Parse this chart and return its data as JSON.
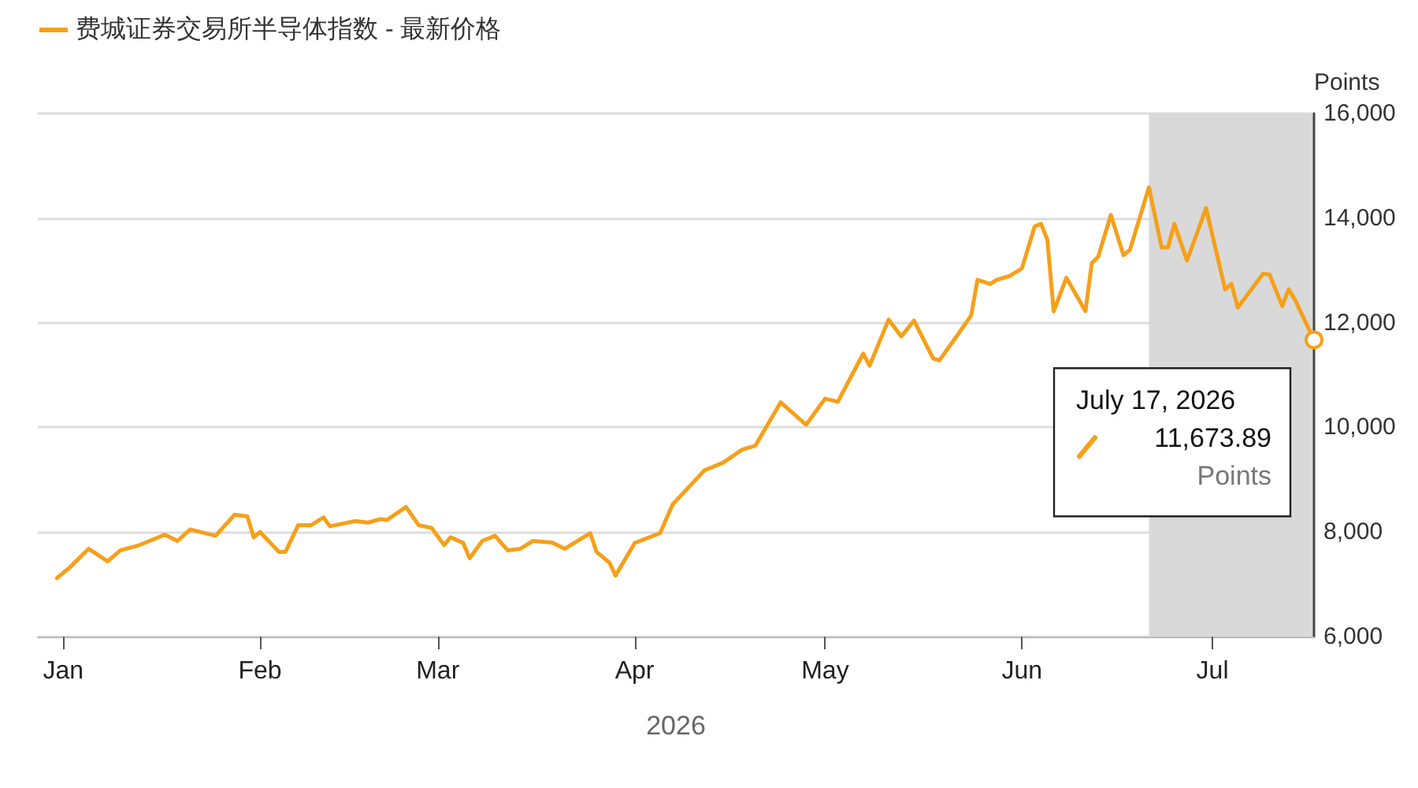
{
  "chart_data": {
    "type": "line",
    "xlabel": "2026",
    "ylabel": "Points",
    "x": [
      "2025-12-31",
      "2026-01-02",
      "2026-01-05",
      "2026-01-08",
      "2026-01-10",
      "2026-01-13",
      "2026-01-17",
      "2026-01-19",
      "2026-01-21",
      "2026-01-25",
      "2026-01-28",
      "2026-01-30",
      "2026-01-31",
      "2026-02-01",
      "2026-02-04",
      "2026-02-05",
      "2026-02-07",
      "2026-02-09",
      "2026-02-11",
      "2026-02-12",
      "2026-02-16",
      "2026-02-18",
      "2026-02-20",
      "2026-02-21",
      "2026-02-24",
      "2026-02-26",
      "2026-02-28",
      "2026-03-02",
      "2026-03-03",
      "2026-03-05",
      "2026-03-06",
      "2026-03-08",
      "2026-03-10",
      "2026-03-12",
      "2026-03-14",
      "2026-03-16",
      "2026-03-19",
      "2026-03-21",
      "2026-03-25",
      "2026-03-26",
      "2026-03-28",
      "2026-03-29",
      "2026-04-01",
      "2026-04-05",
      "2026-04-07",
      "2026-04-12",
      "2026-04-13",
      "2026-04-15",
      "2026-04-18",
      "2026-04-20",
      "2026-04-24",
      "2026-04-28",
      "2026-05-01",
      "2026-05-03",
      "2026-05-07",
      "2026-05-08",
      "2026-05-11",
      "2026-05-13",
      "2026-05-15",
      "2026-05-18",
      "2026-05-19",
      "2026-05-22",
      "2026-05-24",
      "2026-05-25",
      "2026-05-27",
      "2026-05-28",
      "2026-05-30",
      "2026-06-01",
      "2026-06-03",
      "2026-06-04",
      "2026-06-05",
      "2026-06-06",
      "2026-06-08",
      "2026-06-11",
      "2026-06-12",
      "2026-06-13",
      "2026-06-15",
      "2026-06-17",
      "2026-06-18",
      "2026-06-21",
      "2026-06-23",
      "2026-06-24",
      "2026-06-25",
      "2026-06-27",
      "2026-06-30",
      "2026-07-03",
      "2026-07-04",
      "2026-07-05",
      "2026-07-09",
      "2026-07-10",
      "2026-07-12",
      "2026-07-13",
      "2026-07-14",
      "2026-07-17"
    ],
    "series": [
      {
        "name": "费城证券交易所半导体指数 - 最新价格",
        "color": "#f5a01a",
        "values": [
          7120,
          7320,
          7680,
          7440,
          7650,
          7750,
          7950,
          7830,
          8050,
          7930,
          8330,
          8300,
          7900,
          8000,
          7620,
          7620,
          8130,
          8130,
          8280,
          8110,
          8210,
          8180,
          8250,
          8230,
          8480,
          8130,
          8080,
          7750,
          7900,
          7790,
          7500,
          7830,
          7930,
          7650,
          7680,
          7830,
          7800,
          7680,
          7980,
          7620,
          7420,
          7170,
          7790,
          7980,
          8530,
          9180,
          9230,
          9330,
          9580,
          9650,
          10480,
          10050,
          10550,
          10490,
          11410,
          11180,
          12060,
          11740,
          12040,
          11320,
          11280,
          11790,
          12140,
          12820,
          12740,
          12820,
          12890,
          13040,
          13840,
          13890,
          13590,
          12220,
          12860,
          12220,
          13140,
          13260,
          14060,
          13290,
          13390,
          14590,
          13440,
          13440,
          13890,
          13190,
          14190,
          12640,
          12740,
          12290,
          12940,
          12920,
          12320,
          12640,
          12440,
          11673.89
        ]
      }
    ],
    "xlim": [
      "2025-12-28",
      "2026-07-17"
    ],
    "xticks": [
      {
        "value": "2026-01-01",
        "label": "Jan"
      },
      {
        "value": "2026-02-01",
        "label": "Feb"
      },
      {
        "value": "2026-03-01",
        "label": "Mar"
      },
      {
        "value": "2026-04-01",
        "label": "Apr"
      },
      {
        "value": "2026-05-01",
        "label": "May"
      },
      {
        "value": "2026-06-01",
        "label": "Jun"
      },
      {
        "value": "2026-07-01",
        "label": "Jul"
      }
    ],
    "ylim": [
      6000,
      16000
    ],
    "yticks": [
      {
        "value": 6000,
        "label": "6,000"
      },
      {
        "value": 8000,
        "label": "8,000"
      },
      {
        "value": 10000,
        "label": "10,000"
      },
      {
        "value": 12000,
        "label": "12,000"
      },
      {
        "value": 14000,
        "label": "14,000"
      },
      {
        "value": 16000,
        "label": "16,000"
      }
    ],
    "bands": [
      {
        "axis": "x",
        "from": "2026-06-21",
        "to": "2026-07-17",
        "color": "#d9d9d9"
      }
    ],
    "annotations": [
      "July 17, 2026",
      "11,673.89",
      "Points"
    ],
    "grid": "y",
    "legend": "top left",
    "marker": "none",
    "line_style": "solid"
  }
}
